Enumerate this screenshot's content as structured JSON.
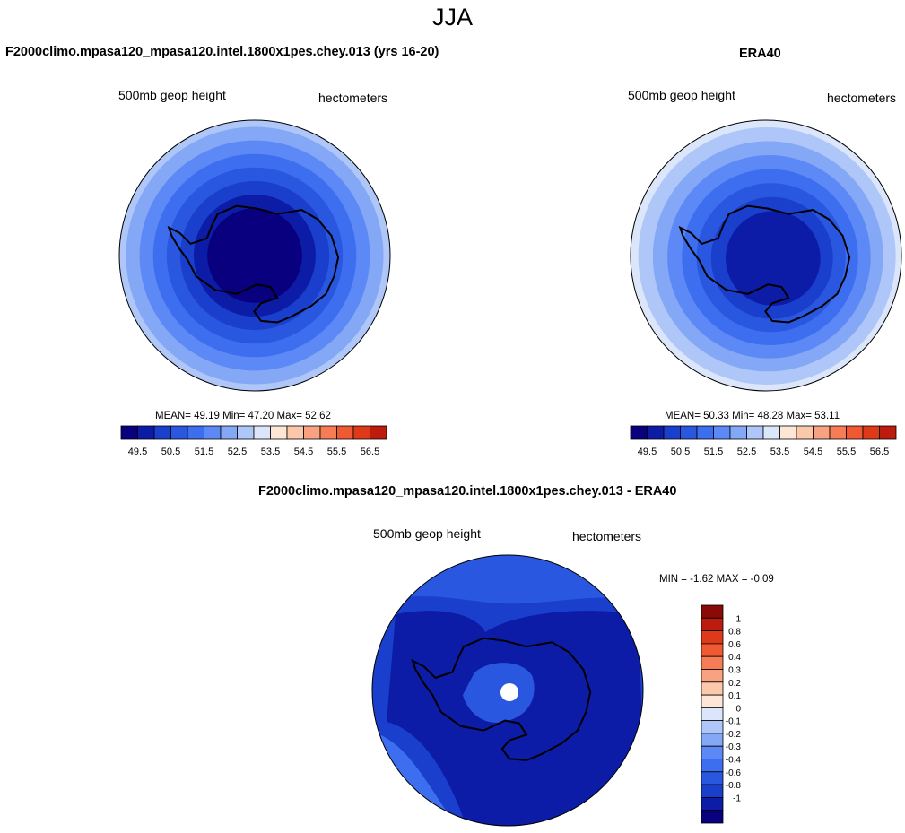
{
  "title": "JJA",
  "palette": {
    "diverging": [
      "#08007f",
      "#0c1ca6",
      "#1a3fcc",
      "#2a57e0",
      "#3e6ef0",
      "#5c89f5",
      "#84a8f6",
      "#aec6f8",
      "#dbe6fa",
      "#fde6d6",
      "#fbc8ac",
      "#f8a282",
      "#f57c55",
      "#f05a32",
      "#e0391a",
      "#bc1c0d",
      "#8a0a08"
    ]
  },
  "panels": {
    "model": {
      "title": "F2000climo.mpasa120_mpasa120.intel.1800x1pes.chey.013 (yrs 16-20)",
      "left_label": "500mb geop height",
      "right_label": "hectometers",
      "stats": "MEAN=  49.19  Min=  47.20  Max=  52.62"
    },
    "obs": {
      "title": "ERA40",
      "left_label": "500mb geop height",
      "right_label": "hectometers",
      "stats": "MEAN=  50.33  Min=  48.28  Max=  53.11"
    },
    "diff": {
      "title": "F2000climo.mpasa120_mpasa120.intel.1800x1pes.chey.013 - ERA40",
      "left_label": "500mb geop height",
      "right_label": "hectometers",
      "stats": "MIN =  -1.62 MAX =  -0.09"
    }
  },
  "chart_data": [
    {
      "type": "heatmap",
      "title": "F2000climo.mpasa120_mpasa120.intel.1800x1pes.chey.013 (yrs 16-20)",
      "variable": "500mb geop height",
      "units": "hectometers",
      "projection": "south polar stereographic",
      "mean": 49.19,
      "min": 47.2,
      "max": 52.62,
      "colorbar_ticks": [
        "49.5",
        "50.5",
        "51.5",
        "52.5",
        "53.5",
        "54.5",
        "55.5",
        "56.5"
      ],
      "colorbar_levels": 16,
      "rings_outer_to_inner": [
        52.75,
        52.25,
        51.75,
        51.25,
        50.75,
        50.25,
        49.75,
        49.0
      ],
      "ring_colors": [
        "#aec6f8",
        "#84a8f6",
        "#5c89f5",
        "#3e6ef0",
        "#2a57e0",
        "#1a3fcc",
        "#0c1ca6",
        "#08007f"
      ]
    },
    {
      "type": "heatmap",
      "title": "ERA40",
      "variable": "500mb geop height",
      "units": "hectometers",
      "projection": "south polar stereographic",
      "mean": 50.33,
      "min": 48.28,
      "max": 53.11,
      "colorbar_ticks": [
        "49.5",
        "50.5",
        "51.5",
        "52.5",
        "53.5",
        "54.5",
        "55.5",
        "56.5"
      ],
      "colorbar_levels": 16,
      "rings_outer_to_inner": [
        53.0,
        52.25,
        51.75,
        51.25,
        50.75,
        50.25,
        49.75,
        49.25
      ],
      "ring_colors": [
        "#dbe6fa",
        "#aec6f8",
        "#84a8f6",
        "#5c89f5",
        "#3e6ef0",
        "#2a57e0",
        "#1a3fcc",
        "#0c1ca6"
      ]
    },
    {
      "type": "heatmap",
      "title": "F2000climo.mpasa120_mpasa120.intel.1800x1pes.chey.013 - ERA40",
      "variable": "500mb geop height",
      "units": "hectometers",
      "projection": "south polar stereographic",
      "min": -1.62,
      "max": -0.09,
      "colorbar_ticks": [
        "1",
        "0.8",
        "0.6",
        "0.4",
        "0.3",
        "0.2",
        "0.1",
        "0",
        "-0.1",
        "-0.2",
        "-0.3",
        "-0.4",
        "-0.6",
        "-0.8",
        "-1"
      ],
      "colorbar_colors": [
        "#8a0a08",
        "#bc1c0d",
        "#e0391a",
        "#f05a32",
        "#f57c55",
        "#f8a282",
        "#fbc8ac",
        "#fde6d6",
        "#dbe6fa",
        "#aec6f8",
        "#84a8f6",
        "#5c89f5",
        "#3e6ef0",
        "#2a57e0",
        "#1a3fcc",
        "#0c1ca6",
        "#08007f"
      ]
    }
  ]
}
